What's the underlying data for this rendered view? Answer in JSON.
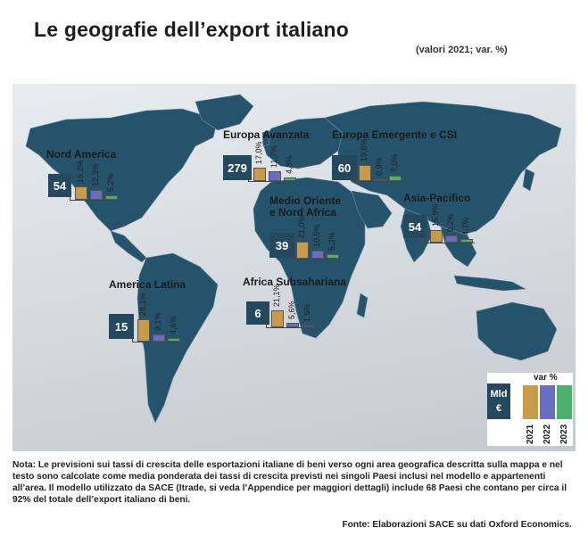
{
  "title": "Le geografie dell’export italiano",
  "subtitle": "(valori 2021; var. %)",
  "colors": {
    "y2021": "#c89b4a",
    "y2022": "#6a6cc0",
    "y2023": "#4caf6a",
    "value_box": "#24495f"
  },
  "chart_data": {
    "type": "bar",
    "categories": [
      "2021",
      "2022",
      "2023"
    ],
    "value_unit": "Mld €",
    "regions": [
      {
        "name": "Nord America",
        "value": "54",
        "labels": [
          "16,2%",
          "12,3%",
          "5,2%"
        ],
        "changes": [
          16.2,
          12.3,
          5.2
        ]
      },
      {
        "name": "Europa Avanzata",
        "value": "279",
        "labels": [
          "17,0%",
          "11,7%",
          "4,8%"
        ],
        "changes": [
          17.0,
          11.7,
          4.8
        ]
      },
      {
        "name": "Europa Emergente e CSI",
        "value": "60",
        "labels": [
          "19,6%",
          "0,9%",
          "7,0%"
        ],
        "changes": [
          19.6,
          0.9,
          7.0
        ]
      },
      {
        "name": "Medio Oriente e Nord Africa",
        "value": "39",
        "labels": [
          "21,0%",
          "10,5%",
          "5,3%"
        ],
        "changes": [
          21.0,
          10.5,
          5.3
        ]
      },
      {
        "name": "Asia-Pacifico",
        "value": "54",
        "labels": [
          "15,9%",
          "9,2%",
          "4,7%"
        ],
        "changes": [
          15.9,
          9.2,
          4.7
        ]
      },
      {
        "name": "America Latina",
        "value": "15",
        "labels": [
          "28,1%",
          "9,1%",
          "4,6%"
        ],
        "changes": [
          28.1,
          9.1,
          4.6
        ]
      },
      {
        "name": "Africa Subsahariana",
        "value": "6",
        "labels": [
          "21,1%",
          "5,6%",
          "1,6%"
        ],
        "changes": [
          21.1,
          5.6,
          1.6
        ]
      }
    ]
  },
  "legend": {
    "unit": "Mld €",
    "var_label": "var %",
    "years": [
      "2021",
      "2022",
      "2023"
    ]
  },
  "note": "Nota: Le previsioni sui tassi di crescita delle esportazioni italiane di beni verso ogni area geografica descritta sulla mappa e nel testo sono calcolate come media ponderata dei tassi di crescita previsti nei singoli Paesi inclusi nel modello e appartenenti all’area. Il modello utilizzato da SACE (Itrade, si veda l’Appendice per maggiori dettagli) include 68 Paesi che contano per circa il 92% del totale dell’export italiano di beni.",
  "source": "Fonte: Elaborazioni SACE su dati Oxford Economics."
}
